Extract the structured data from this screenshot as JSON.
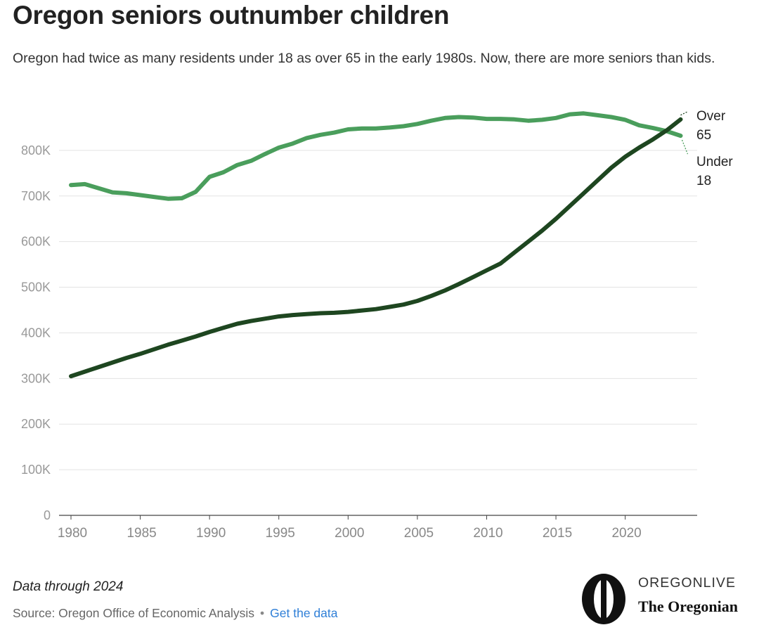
{
  "header": {
    "title": "Oregon seniors outnumber children",
    "subtitle": "Oregon had twice as many residents under 18 as over 65 in the early 1980s. Now, there are more seniors than kids."
  },
  "chart_data": {
    "type": "line",
    "x": [
      1980,
      1981,
      1982,
      1983,
      1984,
      1985,
      1986,
      1987,
      1988,
      1989,
      1990,
      1991,
      1992,
      1993,
      1994,
      1995,
      1996,
      1997,
      1998,
      1999,
      2000,
      2001,
      2002,
      2003,
      2004,
      2005,
      2006,
      2007,
      2008,
      2009,
      2010,
      2011,
      2012,
      2013,
      2014,
      2015,
      2016,
      2017,
      2018,
      2019,
      2020,
      2021,
      2022,
      2023,
      2024
    ],
    "series": [
      {
        "name": "Under 18",
        "color": "#4a9e5c",
        "values": [
          724000,
          726000,
          717000,
          708000,
          706000,
          702000,
          698000,
          694000,
          695000,
          709000,
          742000,
          752000,
          768000,
          777000,
          792000,
          806000,
          815000,
          827000,
          834000,
          839000,
          846000,
          848000,
          848000,
          850000,
          853000,
          858000,
          865000,
          871000,
          873000,
          872000,
          869000,
          869000,
          868000,
          865000,
          867000,
          871000,
          879000,
          881000,
          877000,
          873000,
          867000,
          855000,
          849000,
          842000,
          832000
        ]
      },
      {
        "name": "Over 65",
        "color": "#1e4620",
        "values": [
          305000,
          315000,
          325000,
          335000,
          345000,
          354000,
          364000,
          374000,
          383000,
          392000,
          402000,
          411000,
          420000,
          426000,
          431000,
          436000,
          439000,
          441000,
          443000,
          444000,
          446000,
          449000,
          452000,
          457000,
          462000,
          470000,
          481000,
          493000,
          507000,
          522000,
          537000,
          552000,
          576000,
          600000,
          624000,
          650000,
          678000,
          706000,
          734000,
          762000,
          786000,
          806000,
          824000,
          844000,
          868000
        ]
      }
    ],
    "ylim": [
      0,
      900000
    ],
    "yticks": [
      0,
      100000,
      200000,
      300000,
      400000,
      500000,
      600000,
      700000,
      800000
    ],
    "ytick_labels": [
      "0",
      "100K",
      "200K",
      "300K",
      "400K",
      "500K",
      "600K",
      "700K",
      "800K"
    ],
    "xticks": [
      1980,
      1985,
      1990,
      1995,
      2000,
      2005,
      2010,
      2015,
      2020
    ],
    "xtick_labels": [
      "1980",
      "1985",
      "1990",
      "1995",
      "2000",
      "2005",
      "2010",
      "2015",
      "2020"
    ],
    "end_labels": [
      {
        "series": "Over 65",
        "lines": [
          "Over",
          "65"
        ]
      },
      {
        "series": "Under 18",
        "lines": [
          "Under",
          "18"
        ]
      }
    ],
    "grid": true
  },
  "footer": {
    "note": "Data through 2024",
    "source": "Source: Oregon Office of Economic Analysis",
    "separator": "•",
    "data_link": "Get the data"
  },
  "logo": {
    "mark": "O",
    "top_text": "OREGONLIVE",
    "bottom_text": "The Oregonian"
  }
}
